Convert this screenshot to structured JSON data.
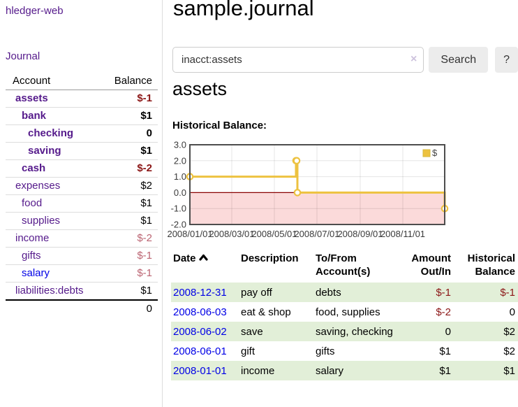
{
  "app": {
    "brand": "hledger-web"
  },
  "sidebar": {
    "journal_label": "Journal",
    "accounts": {
      "headers": [
        "Account",
        "Balance"
      ],
      "rows": [
        {
          "account": "assets",
          "balance": "$-1",
          "depth": 1,
          "in_query": true,
          "balance_style": "neg-strong"
        },
        {
          "account": "bank",
          "balance": "$1",
          "depth": 2,
          "in_query": true,
          "balance_style": ""
        },
        {
          "account": "checking",
          "balance": "0",
          "depth": 3,
          "in_query": true,
          "balance_style": ""
        },
        {
          "account": "saving",
          "balance": "$1",
          "depth": 3,
          "in_query": true,
          "balance_style": ""
        },
        {
          "account": "cash",
          "balance": "$-2",
          "depth": 2,
          "in_query": true,
          "balance_style": "neg-strong"
        },
        {
          "account": "expenses",
          "balance": "$2",
          "depth": 1,
          "in_query": false,
          "balance_style": ""
        },
        {
          "account": "food",
          "balance": "$1",
          "depth": 2,
          "in_query": false,
          "balance_style": ""
        },
        {
          "account": "supplies",
          "balance": "$1",
          "depth": 2,
          "in_query": false,
          "balance_style": ""
        },
        {
          "account": "income",
          "balance": "$-2",
          "depth": 1,
          "in_query": false,
          "balance_style": "neg-soft"
        },
        {
          "account": "gifts",
          "balance": "$-1",
          "depth": 2,
          "in_query": false,
          "balance_style": "neg-soft"
        },
        {
          "account": "salary",
          "balance": "$-1",
          "depth": 2,
          "in_query": false,
          "balance_style": "neg-soft",
          "link_style": "blue"
        },
        {
          "account": "liabilities:debts",
          "balance": "$1",
          "depth": 1,
          "in_query": false,
          "balance_style": ""
        }
      ],
      "total": "0"
    }
  },
  "main": {
    "title": "sample.journal",
    "search": {
      "value": "inacct:assets",
      "clear_icon": "×",
      "button_label": "Search",
      "help_label": "?"
    },
    "account_heading": "assets",
    "chart_label": "Historical Balance:"
  },
  "chart_data": {
    "type": "line",
    "title": "Historical Balance of assets",
    "step": true,
    "series": [
      {
        "name": "$",
        "color": "#edc240",
        "points": [
          [
            "2008-01-01",
            1
          ],
          [
            "2008-06-01",
            2
          ],
          [
            "2008-06-02",
            2
          ],
          [
            "2008-06-03",
            0
          ],
          [
            "2008-12-31",
            -1
          ]
        ]
      }
    ],
    "xrange": [
      "2008-01-01",
      "2008-12-31"
    ],
    "ylim": [
      -2,
      3
    ],
    "yticks": [
      3.0,
      2.0,
      1.0,
      0.0,
      -1.0,
      -2.0
    ],
    "xticks": [
      "2008/01/01",
      "2008/03/01",
      "2008/05/01",
      "2008/07/01",
      "2008/09/01",
      "2008/11/01"
    ],
    "grid": true,
    "legend_position": "top-right",
    "legend_label": "$",
    "zero_line_color": "#8b0000",
    "negative_region_color": "#fbdada",
    "border_color": "#4d4d4d"
  },
  "register": {
    "headers": [
      "Date",
      "Description",
      "To/From Account(s)",
      "Amount Out/In",
      "Historical Balance"
    ],
    "rows": [
      {
        "date": "2008-12-31",
        "description": "pay off",
        "accounts": "debts",
        "amount": "$-1",
        "balance": "$-1"
      },
      {
        "date": "2008-06-03",
        "description": "eat & shop",
        "accounts": "food, supplies",
        "amount": "$-2",
        "balance": "0"
      },
      {
        "date": "2008-06-02",
        "description": "save",
        "accounts": "saving, checking",
        "amount": "0",
        "balance": "$2"
      },
      {
        "date": "2008-06-01",
        "description": "gift",
        "accounts": "gifts",
        "amount": "$1",
        "balance": "$2"
      },
      {
        "date": "2008-01-01",
        "description": "income",
        "accounts": "salary",
        "amount": "$1",
        "balance": "$1"
      }
    ]
  }
}
